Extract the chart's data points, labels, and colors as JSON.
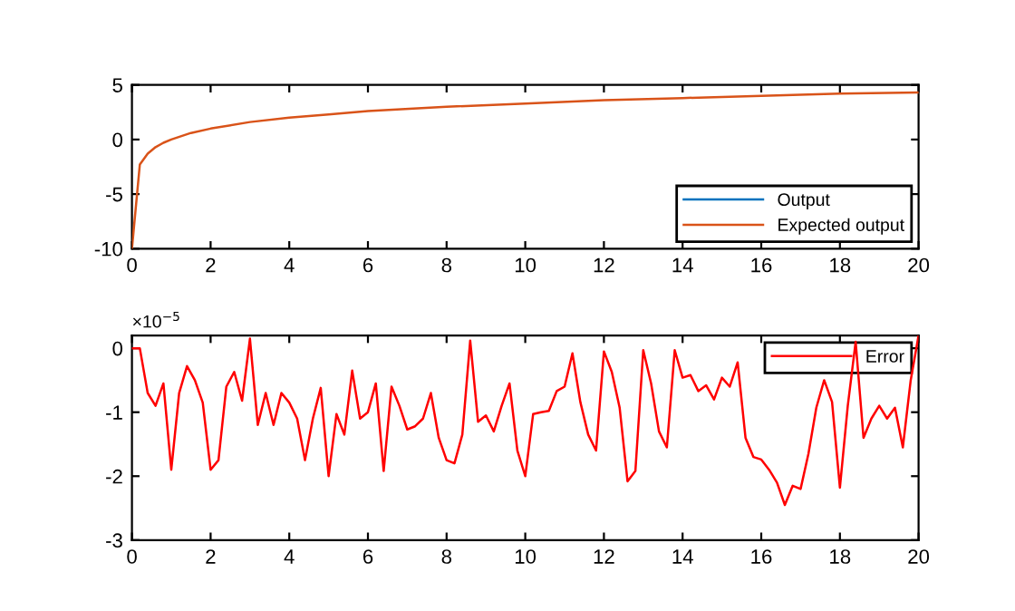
{
  "chart_data": [
    {
      "type": "line",
      "x": [
        0,
        0.2,
        0.4,
        0.6,
        0.8,
        1,
        1.5,
        2,
        3,
        4,
        5,
        6,
        8,
        10,
        12,
        14,
        16,
        18,
        20
      ],
      "xlim": [
        0,
        20
      ],
      "xticks": [
        0,
        2,
        4,
        6,
        8,
        10,
        12,
        14,
        16,
        18,
        20
      ],
      "ylim": [
        -10,
        5
      ],
      "yticks": [
        -10,
        -5,
        0,
        5
      ],
      "legend": "bottom right",
      "series": [
        {
          "name": "Output",
          "color": "#0072bd",
          "values": [
            null,
            null,
            null,
            null,
            null,
            null,
            null,
            null,
            null,
            null,
            null,
            null,
            null,
            null,
            null,
            null,
            null,
            null,
            null
          ]
        },
        {
          "name": "Expected output",
          "color": "#d95319",
          "values": [
            -10,
            -2.3,
            -1.3,
            -0.7,
            -0.3,
            0,
            0.6,
            1,
            1.6,
            2,
            2.3,
            2.6,
            3,
            3.3,
            3.6,
            3.8,
            4,
            4.2,
            4.3
          ]
        }
      ]
    },
    {
      "type": "line",
      "xlim": [
        0,
        20
      ],
      "xticks": [
        0,
        2,
        4,
        6,
        8,
        10,
        12,
        14,
        16,
        18,
        20
      ],
      "ylim": [
        -3,
        0.2
      ],
      "yticks": [
        -3,
        -2,
        -1,
        0
      ],
      "legend": "top right",
      "annotations": [
        "×10$^{−5}$"
      ],
      "x": [
        0,
        0.2,
        0.4,
        0.6,
        0.8,
        1,
        1.2,
        1.4,
        1.6,
        1.8,
        2,
        2.2,
        2.4,
        2.6,
        2.8,
        3,
        3.2,
        3.4,
        3.6,
        3.8,
        4,
        4.2,
        4.4,
        4.6,
        4.8,
        5,
        5.2,
        5.4,
        5.6,
        5.8,
        6,
        6.2,
        6.4,
        6.6,
        6.8,
        7,
        7.2,
        7.4,
        7.6,
        7.8,
        8,
        8.2,
        8.4,
        8.6,
        8.8,
        9,
        9.2,
        9.4,
        9.6,
        9.8,
        10,
        10.2,
        10.4,
        10.6,
        10.8,
        11,
        11.2,
        11.4,
        11.6,
        11.8,
        12,
        12.2,
        12.4,
        12.6,
        12.8,
        13,
        13.2,
        13.4,
        13.6,
        13.8,
        14,
        14.2,
        14.4,
        14.6,
        14.8,
        15,
        15.2,
        15.4,
        15.6,
        15.8,
        16,
        16.2,
        16.4,
        16.6,
        16.8,
        17,
        17.2,
        17.4,
        17.6,
        17.8,
        18,
        18.2,
        18.4,
        18.6,
        18.8,
        19,
        19.2,
        19.4,
        19.6,
        19.8,
        20
      ],
      "series": [
        {
          "name": "Error",
          "color": "#ff0000",
          "values": [
            0,
            0,
            -0.7,
            -0.9,
            -0.55,
            -1.9,
            -0.7,
            -0.28,
            -0.5,
            -0.85,
            -1.9,
            -1.75,
            -0.6,
            -0.37,
            -0.82,
            0.15,
            -1.2,
            -0.7,
            -1.2,
            -0.7,
            -0.85,
            -1.1,
            -1.75,
            -1.1,
            -0.62,
            -2.0,
            -1.03,
            -1.35,
            -0.35,
            -1.1,
            -1.0,
            -0.55,
            -1.92,
            -0.6,
            -0.9,
            -1.27,
            -1.22,
            -1.1,
            -0.7,
            -1.4,
            -1.75,
            -1.8,
            -1.35,
            0.12,
            -1.15,
            -1.05,
            -1.3,
            -0.9,
            -0.55,
            -1.6,
            -2.0,
            -1.03,
            -1.0,
            -0.98,
            -0.67,
            -0.6,
            -0.08,
            -0.84,
            -1.35,
            -1.6,
            -0.05,
            -0.37,
            -0.93,
            -2.08,
            -1.92,
            -0.03,
            -0.55,
            -1.3,
            -1.55,
            -0.03,
            -0.46,
            -0.42,
            -0.67,
            -0.58,
            -0.8,
            -0.46,
            -0.6,
            -0.22,
            -1.4,
            -1.7,
            -1.74,
            -1.9,
            -2.1,
            -2.45,
            -2.15,
            -2.2,
            -1.65,
            -0.93,
            -0.5,
            -0.84,
            -2.18,
            -0.9,
            0.1,
            -1.4,
            -1.1,
            -0.9,
            -1.1,
            -0.93,
            -1.55,
            -0.5,
            0.2
          ]
        }
      ]
    }
  ]
}
